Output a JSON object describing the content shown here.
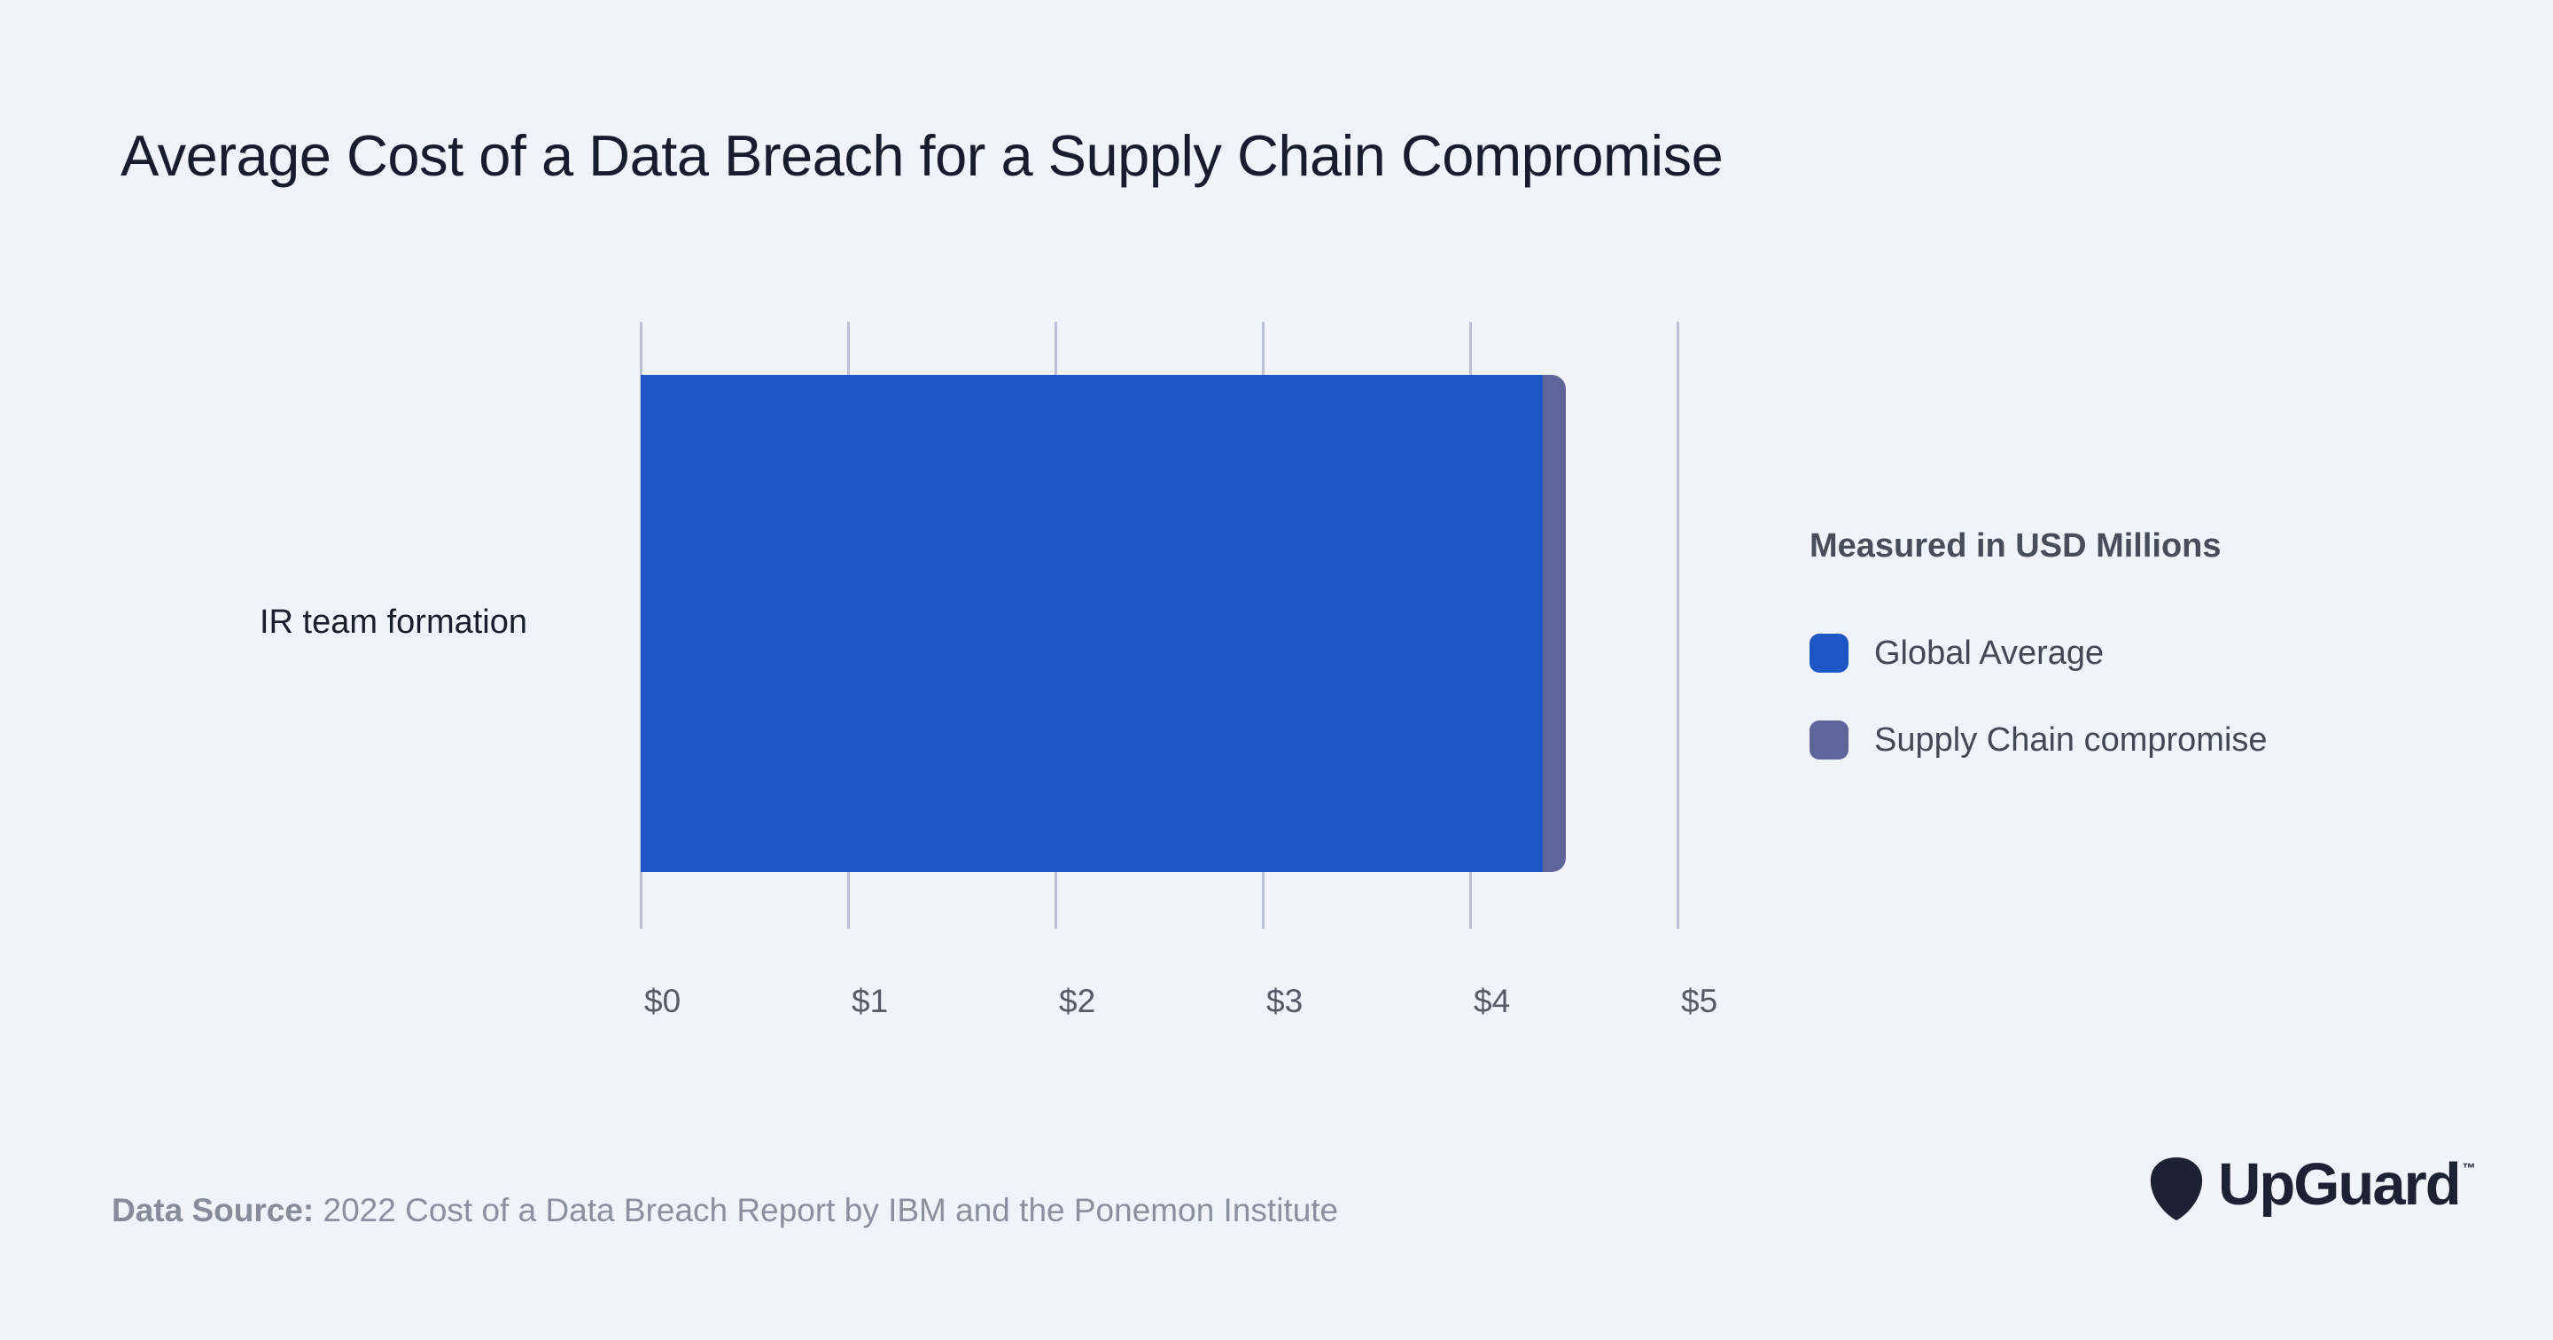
{
  "page": {
    "title": "Average Cost of a Data Breach for a Supply Chain Compromise",
    "footer": {
      "label": "Data Source:",
      "text": " 2022 Cost of a Data Breach Report by IBM and the Ponemon Institute"
    },
    "brand": {
      "wordmark": "UpGuard",
      "trademark": "™"
    }
  },
  "icons": {
    "brand_mark": "upguard-pick-icon"
  },
  "colors": {
    "background": "#f0f3fa",
    "global_average": "#1c57c5",
    "supply_chain": "#5e659b",
    "gridline": "#bcc1d7",
    "title_text": "#171d2f",
    "axis_text": "#555a66",
    "legend_text": "#424856",
    "footer_text": "#8a909f",
    "logo": "#1d2134"
  },
  "chart_data": {
    "type": "bar",
    "orientation": "horizontal",
    "title": "Average Cost of a Data Breach for a Supply Chain Compromise",
    "categories": [
      "IR team formation"
    ],
    "series": [
      {
        "name": "Global Average",
        "values": [
          4.35
        ],
        "color": "#1c57c5"
      },
      {
        "name": "Supply Chain compromise",
        "values": [
          4.46
        ],
        "color": "#5e659b"
      }
    ],
    "xlabel": "",
    "ylabel": "",
    "xlim": [
      0,
      5
    ],
    "x_ticks": [
      "$0",
      "$1",
      "$2",
      "$3",
      "$4",
      "$5"
    ],
    "x_tick_values": [
      0,
      1,
      2,
      3,
      4,
      5
    ],
    "grid": "vertical-gridlines-on",
    "legend_title": "Measured in USD Millions",
    "legend_position": "right",
    "units": "USD Millions"
  }
}
